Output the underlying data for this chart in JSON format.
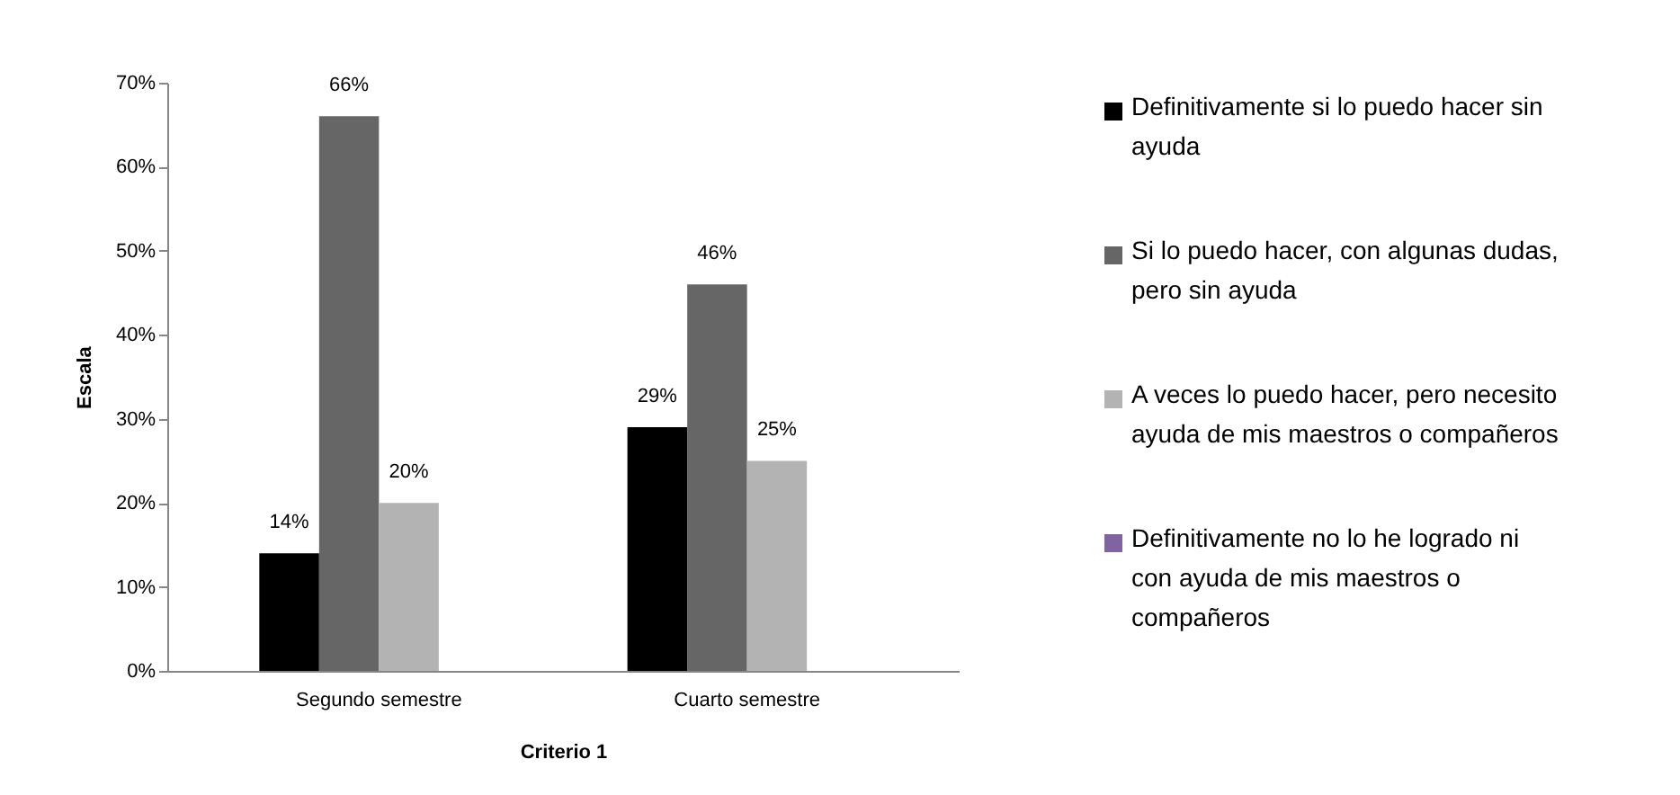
{
  "chart_data": {
    "type": "bar",
    "xlabel": "Criterio 1",
    "ylabel": "Escala",
    "categories": [
      "Segundo semestre",
      "Cuarto semestre"
    ],
    "ylim": [
      0,
      70
    ],
    "yticks": [
      {
        "value": 0,
        "label": "0%"
      },
      {
        "value": 10,
        "label": "10%"
      },
      {
        "value": 20,
        "label": "20%"
      },
      {
        "value": 30,
        "label": "30%"
      },
      {
        "value": 40,
        "label": "40%"
      },
      {
        "value": 50,
        "label": "50%"
      },
      {
        "value": 60,
        "label": "60%"
      },
      {
        "value": 70,
        "label": "70%"
      }
    ],
    "grid": false,
    "legend": "right",
    "series": [
      {
        "name": "Definitivamente si lo puedo hacer sin ayuda",
        "color": "#000000",
        "values": [
          14,
          29
        ],
        "value_labels": [
          "14%",
          "29%"
        ]
      },
      {
        "name": "Si lo puedo hacer, con algunas dudas, pero sin ayuda",
        "color": "#666666",
        "values": [
          66,
          46
        ],
        "value_labels": [
          "66%",
          "46%"
        ]
      },
      {
        "name": "A veces lo puedo hacer, pero necesito ayuda de mis maestros o compañeros",
        "color": "#b3b3b3",
        "values": [
          20,
          25
        ],
        "value_labels": [
          "20%",
          "25%"
        ]
      },
      {
        "name": "Definitivamente no lo he logrado ni con ayuda de mis maestros o compañeros",
        "color": "#8064a2",
        "values": [
          null,
          null
        ]
      }
    ]
  }
}
